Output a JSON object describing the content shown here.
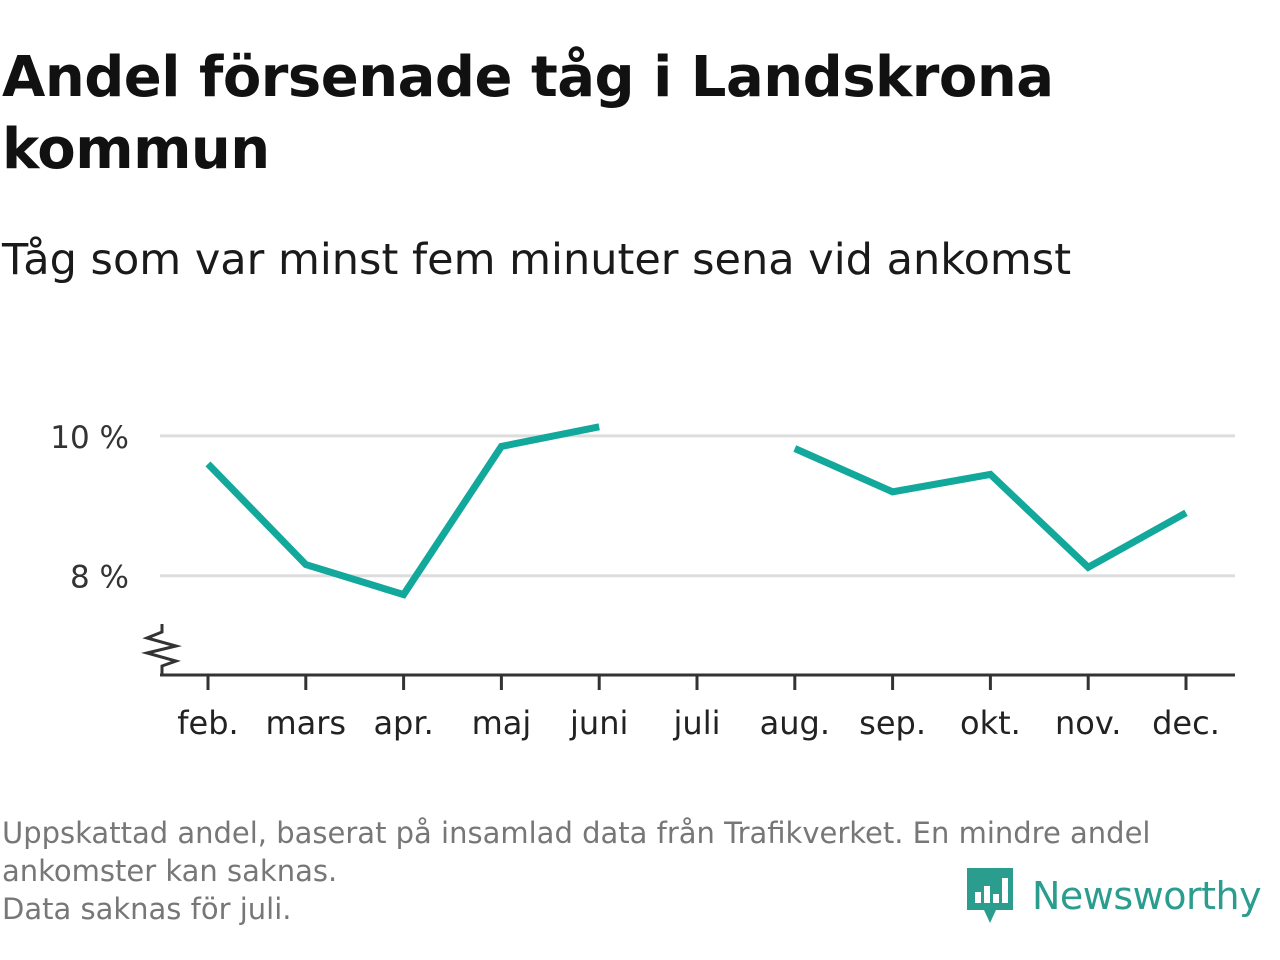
{
  "header": {
    "title": "Andel försenade tåg i Landskrona kommun",
    "subtitle": "Tåg som var minst fem minuter sena vid ankomst"
  },
  "footnote": {
    "line1": "Uppskattad andel, baserat på insamlad data från Trafikverket. En mindre andel",
    "line2": "ankomster kan saknas.",
    "line3": "Data saknas för juli."
  },
  "brand": {
    "name": "Newsworthy",
    "icon": "newsworthy-logo-icon"
  },
  "colors": {
    "line": "#12a89b",
    "grid": "#dddddd",
    "axis": "#333333",
    "brand": "#2a9d8f"
  },
  "chart_data": {
    "type": "line",
    "categories": [
      "feb.",
      "mars",
      "apr.",
      "maj",
      "juni",
      "juli",
      "aug.",
      "sep.",
      "okt.",
      "nov.",
      "dec."
    ],
    "series": [
      {
        "values": [
          9.6,
          8.16,
          7.73,
          9.85,
          10.13,
          null,
          9.82,
          9.2,
          9.45,
          8.12,
          8.9
        ]
      }
    ],
    "y_ticks": [
      {
        "value": 8,
        "label": "8 %"
      },
      {
        "value": 10,
        "label": "10 %"
      }
    ],
    "ylim": [
      6.58,
      10.8
    ],
    "y_axis_break": true,
    "grid": true,
    "legend": "none"
  }
}
